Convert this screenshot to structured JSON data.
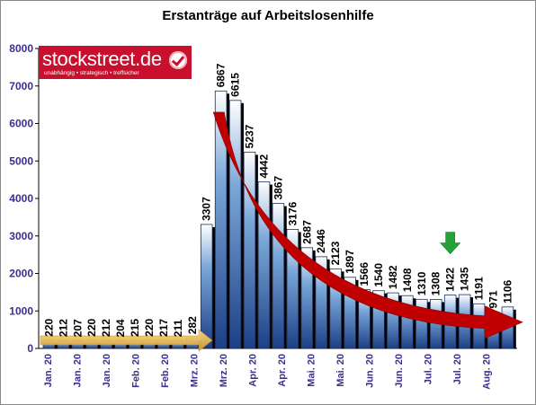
{
  "chart_data": {
    "type": "bar",
    "title": "Erstanträge auf Arbeitslosenhilfe",
    "ylim": [
      0,
      8000
    ],
    "yticks": [
      0,
      1000,
      2000,
      3000,
      4000,
      5000,
      6000,
      7000,
      8000
    ],
    "values": [
      220,
      212,
      207,
      220,
      212,
      204,
      215,
      220,
      217,
      211,
      282,
      3307,
      6867,
      6615,
      5237,
      4442,
      3867,
      3176,
      2687,
      2446,
      2123,
      1897,
      1566,
      1540,
      1482,
      1408,
      1310,
      1308,
      1422,
      1435,
      1191,
      971,
      1106
    ],
    "value_labels": [
      "220",
      "212",
      "207",
      "220",
      "212",
      "204",
      "215",
      "220",
      "217",
      "211",
      "282",
      "3307",
      "6867",
      "6615",
      "5237",
      "4442",
      "3867",
      "3176",
      "2687",
      "2446",
      "2123",
      "1897",
      "1566",
      "1540",
      "1482",
      "1408",
      "1310",
      "1308",
      "1422",
      "1435",
      "1191",
      "971",
      "1106"
    ],
    "x_tick_labels": [
      "Jan. 20",
      "Jan. 20",
      "Jan. 20",
      "Feb. 20",
      "Feb. 20",
      "Mrz. 20",
      "Mrz. 20",
      "Apr. 20",
      "Apr. 20",
      "Mai. 20",
      "Mai. 20",
      "Jun. 20",
      "Jun. 20",
      "Jul. 20",
      "Jul. 20",
      "Aug. 20"
    ],
    "grid": false,
    "legend": "none",
    "colors": {
      "axis_text": "#3b2f8f",
      "bar_top": "#ffffff",
      "bar_mid": "#7aa6d8",
      "bar_bottom": "#1c3f86",
      "bar_stroke": "#1a2f5e",
      "bar_shadow": "#000000",
      "trend_arrow": "#c00000",
      "base_arrow": "#e8b84a",
      "marker_arrow": "#22a33a"
    },
    "annotations": [
      {
        "type": "arrow",
        "direction": "down",
        "at_index": 28,
        "color": "#22a33a"
      },
      {
        "type": "curved-arrow",
        "description": "declining trend",
        "color": "#c00000"
      },
      {
        "type": "horizontal-arrow",
        "description": "baseline",
        "color": "#e8b84a"
      }
    ]
  },
  "logo": {
    "text": "stockstreet.de",
    "tagline": "unabhängig • strategisch • treffsicher",
    "icon": "check-icon"
  }
}
